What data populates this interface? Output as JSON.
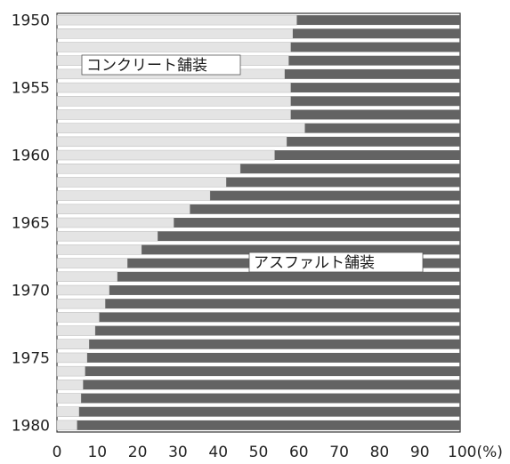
{
  "chart_data": {
    "type": "bar",
    "orientation": "horizontal",
    "stacked": true,
    "categories": [
      "1950",
      "1951",
      "1952",
      "1953",
      "1954",
      "1955",
      "1956",
      "1957",
      "1958",
      "1959",
      "1960",
      "1961",
      "1962",
      "1963",
      "1964",
      "1965",
      "1966",
      "1967",
      "1968",
      "1969",
      "1970",
      "1971",
      "1972",
      "1973",
      "1974",
      "1975",
      "1976",
      "1977",
      "1978",
      "1979",
      "1980"
    ],
    "series": [
      {
        "name": "コンクリート舗装",
        "color": "#e4e4e4",
        "values": [
          59.5,
          58.5,
          58,
          57.5,
          56.5,
          58,
          58,
          58,
          61.5,
          57,
          54,
          45.5,
          42,
          38,
          33,
          29,
          25,
          21,
          17.5,
          15,
          13,
          12,
          10.5,
          9.5,
          8,
          7.5,
          7,
          6.5,
          6,
          5.5,
          5
        ]
      },
      {
        "name": "アスファルト舗装",
        "color": "#636363",
        "values": [
          40.5,
          41.5,
          42,
          42.5,
          43.5,
          42,
          42,
          42,
          38.5,
          43,
          46,
          54.5,
          58,
          62,
          67,
          71,
          75,
          79,
          82.5,
          85,
          87,
          88,
          89.5,
          90.5,
          92,
          92.5,
          93,
          93.5,
          94,
          94.5,
          95
        ]
      }
    ],
    "y_tick_labels": [
      "1950",
      "1955",
      "1960",
      "1965",
      "1970",
      "1975",
      "1980"
    ],
    "x_tick_labels": [
      "0",
      "10",
      "20",
      "30",
      "40",
      "50",
      "60",
      "70",
      "80",
      "90",
      "100(%)"
    ],
    "xlim": [
      0,
      100
    ],
    "grid": false,
    "legend": "inline labels"
  }
}
